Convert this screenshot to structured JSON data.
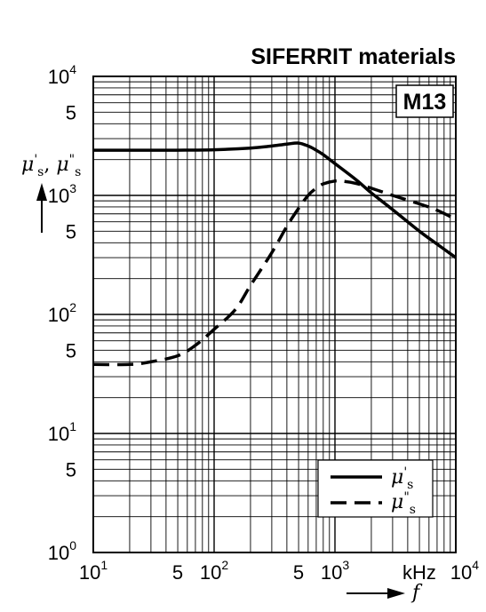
{
  "chart_data": {
    "type": "line",
    "title": "SIFERRIT materials",
    "material_badge": "M13",
    "x_scale": "log",
    "y_scale": "log",
    "xlim": [
      10,
      10000
    ],
    "ylim": [
      1,
      10000
    ],
    "grid": true,
    "legend_placement": "bottom-right",
    "ylabel": {
      "symbol1": "μ",
      "prime1": "'",
      "sub1": "s",
      "sep": ", ",
      "symbol2": "μ",
      "prime2": "\"",
      "sub2": "s"
    },
    "xlabel": {
      "unit": "kHz",
      "symbol": "f"
    },
    "x_ticks": [
      {
        "value": 10,
        "base": "10",
        "exp": "1"
      },
      {
        "value": 50,
        "base": "5",
        "exp": ""
      },
      {
        "value": 100,
        "base": "10",
        "exp": "2"
      },
      {
        "value": 500,
        "base": "5",
        "exp": ""
      },
      {
        "value": 1000,
        "base": "10",
        "exp": "3"
      },
      {
        "value": 10000,
        "base": "10",
        "exp": "4"
      }
    ],
    "y_ticks": [
      {
        "value": 1,
        "base": "10",
        "exp": "0"
      },
      {
        "value": 5,
        "base": "5",
        "exp": ""
      },
      {
        "value": 10,
        "base": "10",
        "exp": "1"
      },
      {
        "value": 50,
        "base": "5",
        "exp": ""
      },
      {
        "value": 100,
        "base": "10",
        "exp": "2"
      },
      {
        "value": 500,
        "base": "5",
        "exp": ""
      },
      {
        "value": 1000,
        "base": "10",
        "exp": "3"
      },
      {
        "value": 5000,
        "base": "5",
        "exp": ""
      },
      {
        "value": 10000,
        "base": "10",
        "exp": "4"
      }
    ],
    "series": [
      {
        "name": "μ's",
        "legend": {
          "symbol": "μ",
          "prime": "'",
          "sub": "s"
        },
        "style": "solid",
        "x": [
          10,
          20,
          50,
          100,
          200,
          300,
          400,
          500,
          600,
          700,
          800,
          1000,
          1500,
          2000,
          3000,
          5000,
          7000,
          10000
        ],
        "y": [
          2400,
          2400,
          2400,
          2420,
          2500,
          2600,
          2700,
          2750,
          2600,
          2400,
          2200,
          1850,
          1350,
          1050,
          760,
          500,
          390,
          300
        ]
      },
      {
        "name": "μ\"s",
        "legend": {
          "symbol": "μ",
          "prime": "\"",
          "sub": "s"
        },
        "style": "dashed",
        "x": [
          10,
          20,
          30,
          50,
          70,
          100,
          150,
          200,
          300,
          400,
          500,
          600,
          700,
          800,
          1000,
          1200,
          1500,
          2000,
          3000,
          5000,
          7000,
          10000
        ],
        "y": [
          38,
          38,
          40,
          45,
          55,
          75,
          110,
          175,
          330,
          550,
          780,
          1000,
          1150,
          1250,
          1320,
          1310,
          1260,
          1150,
          1000,
          850,
          750,
          630
        ]
      }
    ]
  }
}
